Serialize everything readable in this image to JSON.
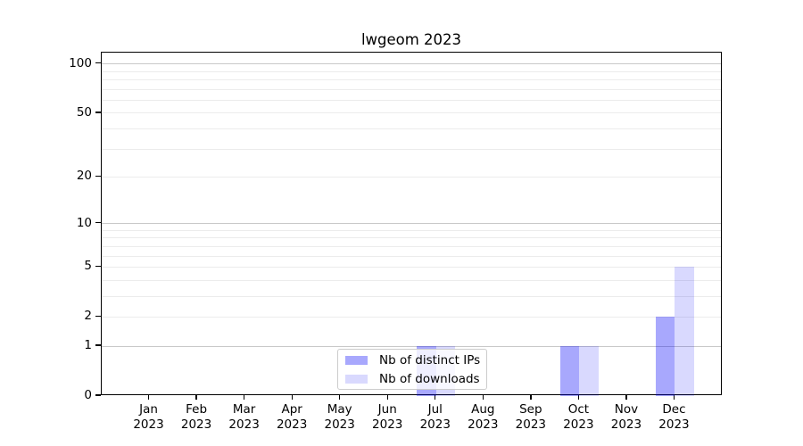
{
  "title": "lwgeom 2023",
  "chart_data": {
    "type": "bar",
    "title": "lwgeom 2023",
    "year": "2023",
    "categories": [
      "Jan",
      "Feb",
      "Mar",
      "Apr",
      "May",
      "Jun",
      "Jul",
      "Aug",
      "Sep",
      "Oct",
      "Nov",
      "Dec"
    ],
    "series": [
      {
        "name": "Nb of distinct IPs",
        "color": "#0000f8",
        "alpha": 0.34,
        "blended_color": "#a9a9fa",
        "values": [
          0,
          0,
          0,
          0,
          0,
          0,
          1,
          0,
          0,
          1,
          0,
          2
        ]
      },
      {
        "name": "Nb of downloads",
        "color": "#0000f8",
        "alpha": 0.15,
        "blended_color": "#d9d9fa",
        "values": [
          0,
          0,
          0,
          0,
          0,
          0,
          1,
          0,
          0,
          1,
          0,
          5
        ]
      }
    ],
    "scale": "log1p",
    "y_ticks": [
      0,
      1,
      2,
      5,
      10,
      20,
      50,
      100
    ],
    "y_major_grid": [
      1,
      10,
      100
    ],
    "y_minor_grid": [
      2,
      3,
      4,
      5,
      6,
      7,
      8,
      9,
      20,
      30,
      40,
      50,
      60,
      70,
      80,
      90
    ],
    "ylim": [
      0,
      117
    ],
    "grid": true,
    "legend_position": "lower center",
    "xlabel": "",
    "ylabel": ""
  },
  "colors": {
    "grid_major": "#c9c9c9",
    "grid_minor": "#ececec",
    "spine": "#000000",
    "legend_border": "#cccccc",
    "text": "#000000"
  }
}
